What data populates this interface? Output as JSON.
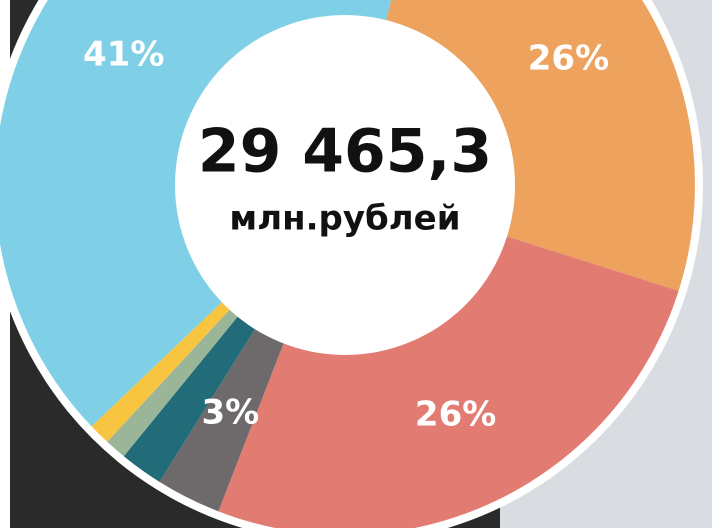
{
  "chart_data": {
    "type": "donut",
    "center_value": "29 465,3",
    "center_unit": "млн.рублей",
    "values": [
      26,
      26,
      3,
      2,
      1,
      1,
      41
    ],
    "value_labels": [
      "26%",
      "26%",
      "3%",
      null,
      null,
      null,
      "41%"
    ],
    "colors": [
      "#eda35d",
      "#e27c72",
      "#6e6a6c",
      "#226b78",
      "#9ab597",
      "#f8c540",
      "#7fd0e6"
    ]
  }
}
